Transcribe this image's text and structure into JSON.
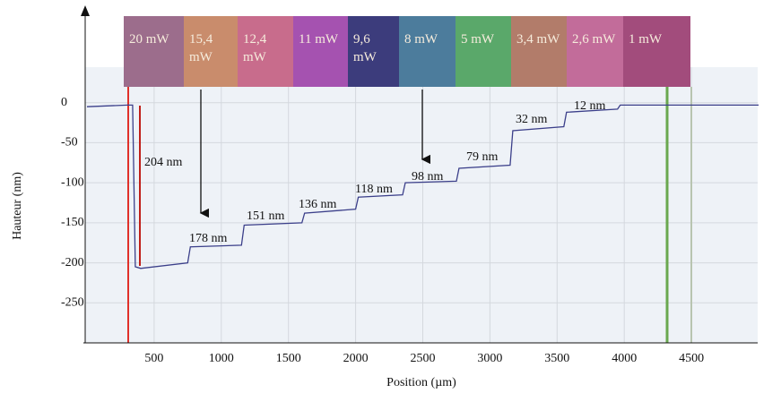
{
  "chart_data": {
    "type": "line",
    "x_label": "Position (µm)",
    "y_label": "Hauteur  (nm)",
    "x": [
      0,
      300,
      340,
      360,
      400,
      750,
      770,
      1150,
      1170,
      1600,
      1620,
      2000,
      2020,
      2350,
      2370,
      2750,
      2770,
      3150,
      3170,
      3550,
      3570,
      3950,
      3970,
      5000
    ],
    "values": [
      -5,
      -3,
      -3,
      -205,
      -207,
      -200,
      -180,
      -178,
      -153,
      -150,
      -138,
      -133,
      -118,
      -115,
      -100,
      -98,
      -82,
      -78,
      -35,
      -30,
      -12,
      -8,
      -3,
      -3
    ],
    "color": "#3b3f8a",
    "xlim": [
      0,
      5000
    ],
    "xticks": [
      500,
      1000,
      1500,
      2000,
      2500,
      3000,
      3500,
      4000,
      4500
    ],
    "ylim": [
      -300,
      50
    ],
    "yticks": [
      0,
      -50,
      -100,
      -150,
      -200,
      -250
    ],
    "grid": true,
    "annotations": [
      "204 nm",
      "178 nm",
      "151 nm",
      "136 nm",
      "118 nm",
      "98 nm",
      "79 nm",
      "32 nm",
      "12 nm"
    ],
    "power_bands": [
      {
        "label": "20 mW",
        "color": "#9c6d8c"
      },
      {
        "label": "15,4 mW",
        "color": "#c98c6c"
      },
      {
        "label": "12,4 mW",
        "color": "#c86c8c"
      },
      {
        "label": "11 mW",
        "color": "#a552b0"
      },
      {
        "label": "9,6 mW",
        "color": "#3c3c7c"
      },
      {
        "label": "8 mW",
        "color": "#4c7c9c"
      },
      {
        "label": "5 mW",
        "color": "#5aa86a"
      },
      {
        "label": "3,4 mW",
        "color": "#b27c6a"
      },
      {
        "label": "2,6 mW",
        "color": "#c26c9a"
      },
      {
        "label": "1 mW",
        "color": "#a24c7c"
      }
    ]
  }
}
